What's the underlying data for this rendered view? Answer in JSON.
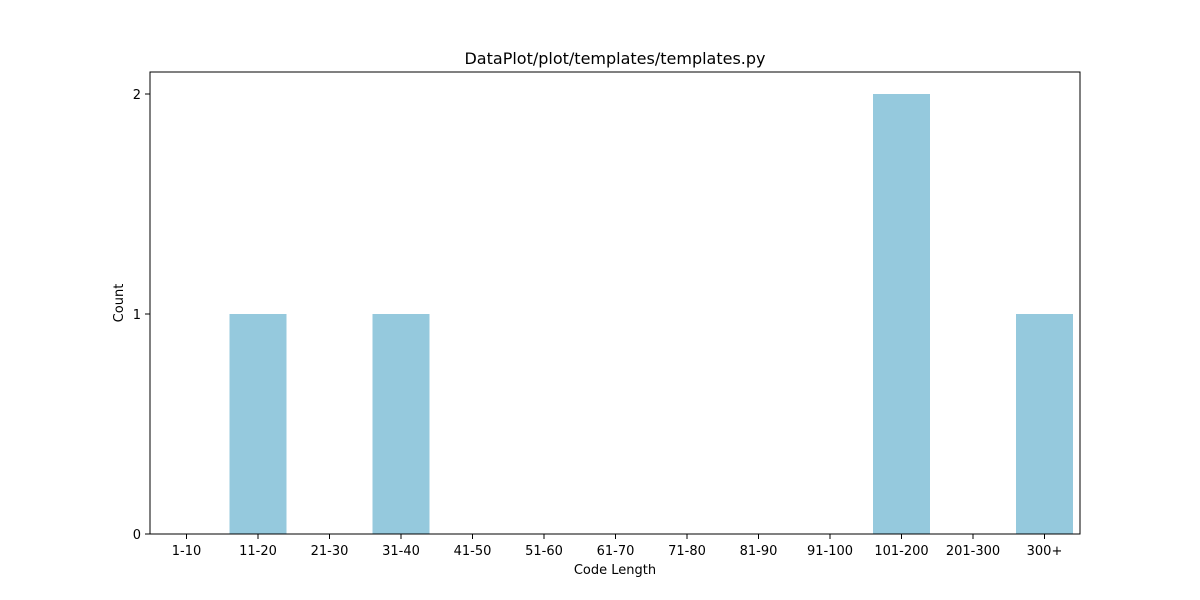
{
  "chart_data": {
    "type": "bar",
    "title": "DataPlot/plot/templates/templates.py",
    "xlabel": "Code Length",
    "ylabel": "Count",
    "categories": [
      "1-10",
      "11-20",
      "21-30",
      "31-40",
      "41-50",
      "51-60",
      "61-70",
      "71-80",
      "81-90",
      "91-100",
      "101-200",
      "201-300",
      "300+"
    ],
    "values": [
      0,
      1,
      0,
      1,
      0,
      0,
      0,
      0,
      0,
      0,
      2,
      0,
      1
    ],
    "ylim": [
      0,
      2.1
    ],
    "yticks": [
      0,
      1,
      2
    ],
    "bar_color": "#95c9dd",
    "grid": false,
    "legend": "none"
  }
}
